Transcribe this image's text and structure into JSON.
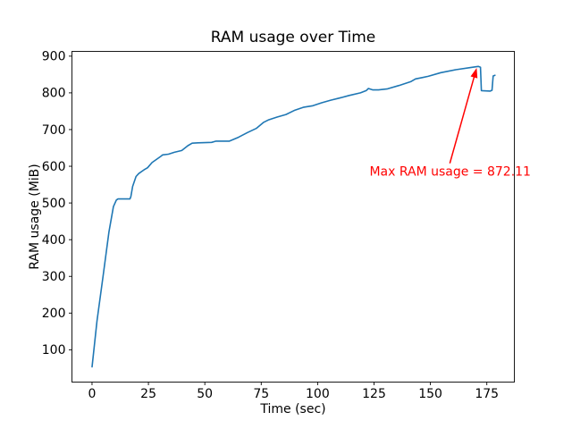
{
  "chart_data": {
    "type": "line",
    "title": "RAM usage over Time",
    "xlabel": "Time (sec)",
    "ylabel": "RAM usage (MiB)",
    "xlim": [
      -8.9,
      187.2
    ],
    "ylim": [
      12,
      913
    ],
    "xticks": [
      0,
      25,
      50,
      75,
      100,
      125,
      150,
      175
    ],
    "yticks": [
      100,
      200,
      300,
      400,
      500,
      600,
      700,
      800,
      900
    ],
    "grid": false,
    "legend": null,
    "line_color": "#1f77b4",
    "background": "#ffffff",
    "series": [
      {
        "name": "RAM usage",
        "points": [
          [
            0,
            53.5
          ],
          [
            2.2,
            178
          ],
          [
            4.9,
            300
          ],
          [
            7.5,
            421
          ],
          [
            9.5,
            490
          ],
          [
            10.8,
            508
          ],
          [
            11.5,
            511
          ],
          [
            16.8,
            511
          ],
          [
            17.2,
            517
          ],
          [
            18,
            545
          ],
          [
            19.5,
            572
          ],
          [
            20.7,
            580
          ],
          [
            23,
            590
          ],
          [
            24.6,
            596
          ],
          [
            26.6,
            610
          ],
          [
            30.5,
            627
          ],
          [
            31.3,
            631
          ],
          [
            33.9,
            633
          ],
          [
            36.5,
            638
          ],
          [
            39.8,
            643
          ],
          [
            42.5,
            656
          ],
          [
            44.4,
            663
          ],
          [
            47,
            664
          ],
          [
            53,
            665
          ],
          [
            55,
            668.5
          ],
          [
            60.9,
            668.5
          ],
          [
            64.9,
            679
          ],
          [
            68.9,
            692
          ],
          [
            72.8,
            703
          ],
          [
            76.1,
            720
          ],
          [
            78.1,
            726
          ],
          [
            82,
            734
          ],
          [
            86,
            741
          ],
          [
            90,
            753
          ],
          [
            93.9,
            761
          ],
          [
            97.9,
            765
          ],
          [
            101.8,
            773
          ],
          [
            105.8,
            780
          ],
          [
            109.7,
            786
          ],
          [
            114,
            793
          ],
          [
            119,
            800
          ],
          [
            121.5,
            806
          ],
          [
            122.5,
            812
          ],
          [
            124.5,
            808
          ],
          [
            127,
            808
          ],
          [
            131,
            811
          ],
          [
            136,
            820
          ],
          [
            141.4,
            831
          ],
          [
            143.4,
            838
          ],
          [
            146.6,
            842
          ],
          [
            149,
            845
          ],
          [
            154.6,
            855
          ],
          [
            161.2,
            863
          ],
          [
            167.8,
            869
          ],
          [
            171.2,
            872.11
          ],
          [
            172.2,
            870
          ],
          [
            172.6,
            806
          ],
          [
            176.5,
            805
          ],
          [
            177.3,
            807
          ],
          [
            177.8,
            846
          ],
          [
            178.6,
            848
          ]
        ]
      }
    ],
    "annotation": {
      "text": "Max RAM usage = 872.11",
      "value": 872.11,
      "color": "#ff0000",
      "text_xy": [
        123,
        574
      ],
      "arrow_from": [
        158.6,
        608
      ],
      "arrow_to": [
        170.5,
        868
      ]
    }
  }
}
